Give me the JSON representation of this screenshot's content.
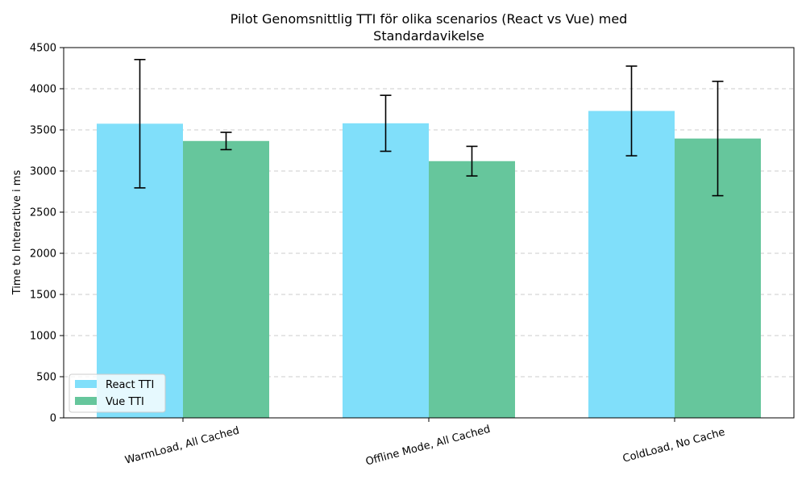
{
  "chart_data": {
    "type": "bar",
    "title": "Pilot Genomsnittlig TTI  för olika scenarios (React vs Vue) med",
    "subtitle": "Standardavikelse",
    "xlabel": "",
    "ylabel": "Time to Interactive  i ms",
    "categories": [
      "WarmLoad, All Cached",
      "Offline Mode, All Cached",
      "ColdLoad, No Cache"
    ],
    "ylim": [
      0,
      4500
    ],
    "yticks": [
      0,
      500,
      1000,
      1500,
      2000,
      2500,
      3000,
      3500,
      4000,
      4500
    ],
    "grid": "horizontal-dashed",
    "legend_position": "lower-left",
    "series": [
      {
        "name": "React TTI",
        "color": "#80dffa",
        "values": [
          3575,
          3580,
          3730
        ],
        "errors": [
          780,
          340,
          545
        ]
      },
      {
        "name": "Vue TTI",
        "color": "#66c69c",
        "values": [
          3365,
          3120,
          3395
        ],
        "errors": [
          105,
          180,
          695
        ]
      }
    ]
  }
}
